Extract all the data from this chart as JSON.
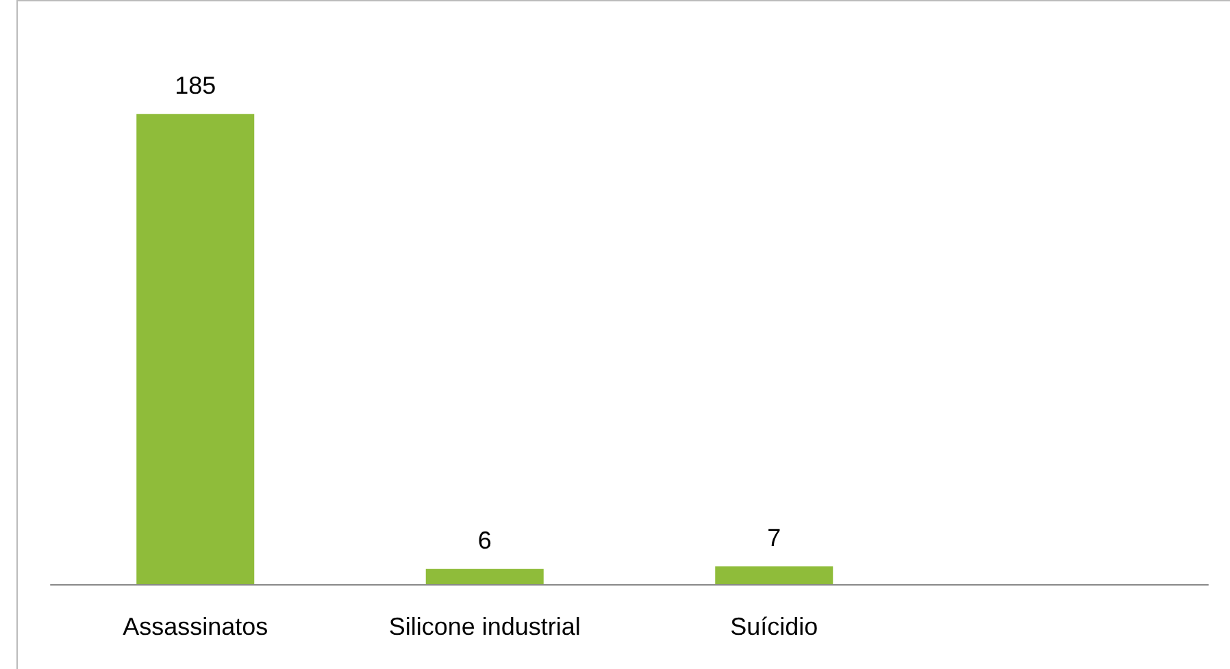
{
  "chart_data": {
    "type": "bar",
    "categories": [
      "Assassinatos",
      "Silicone industrial",
      "Suícidio",
      null
    ],
    "values": [
      185,
      6,
      7,
      null
    ],
    "color": "#8fbc3a",
    "data_labels": true
  }
}
